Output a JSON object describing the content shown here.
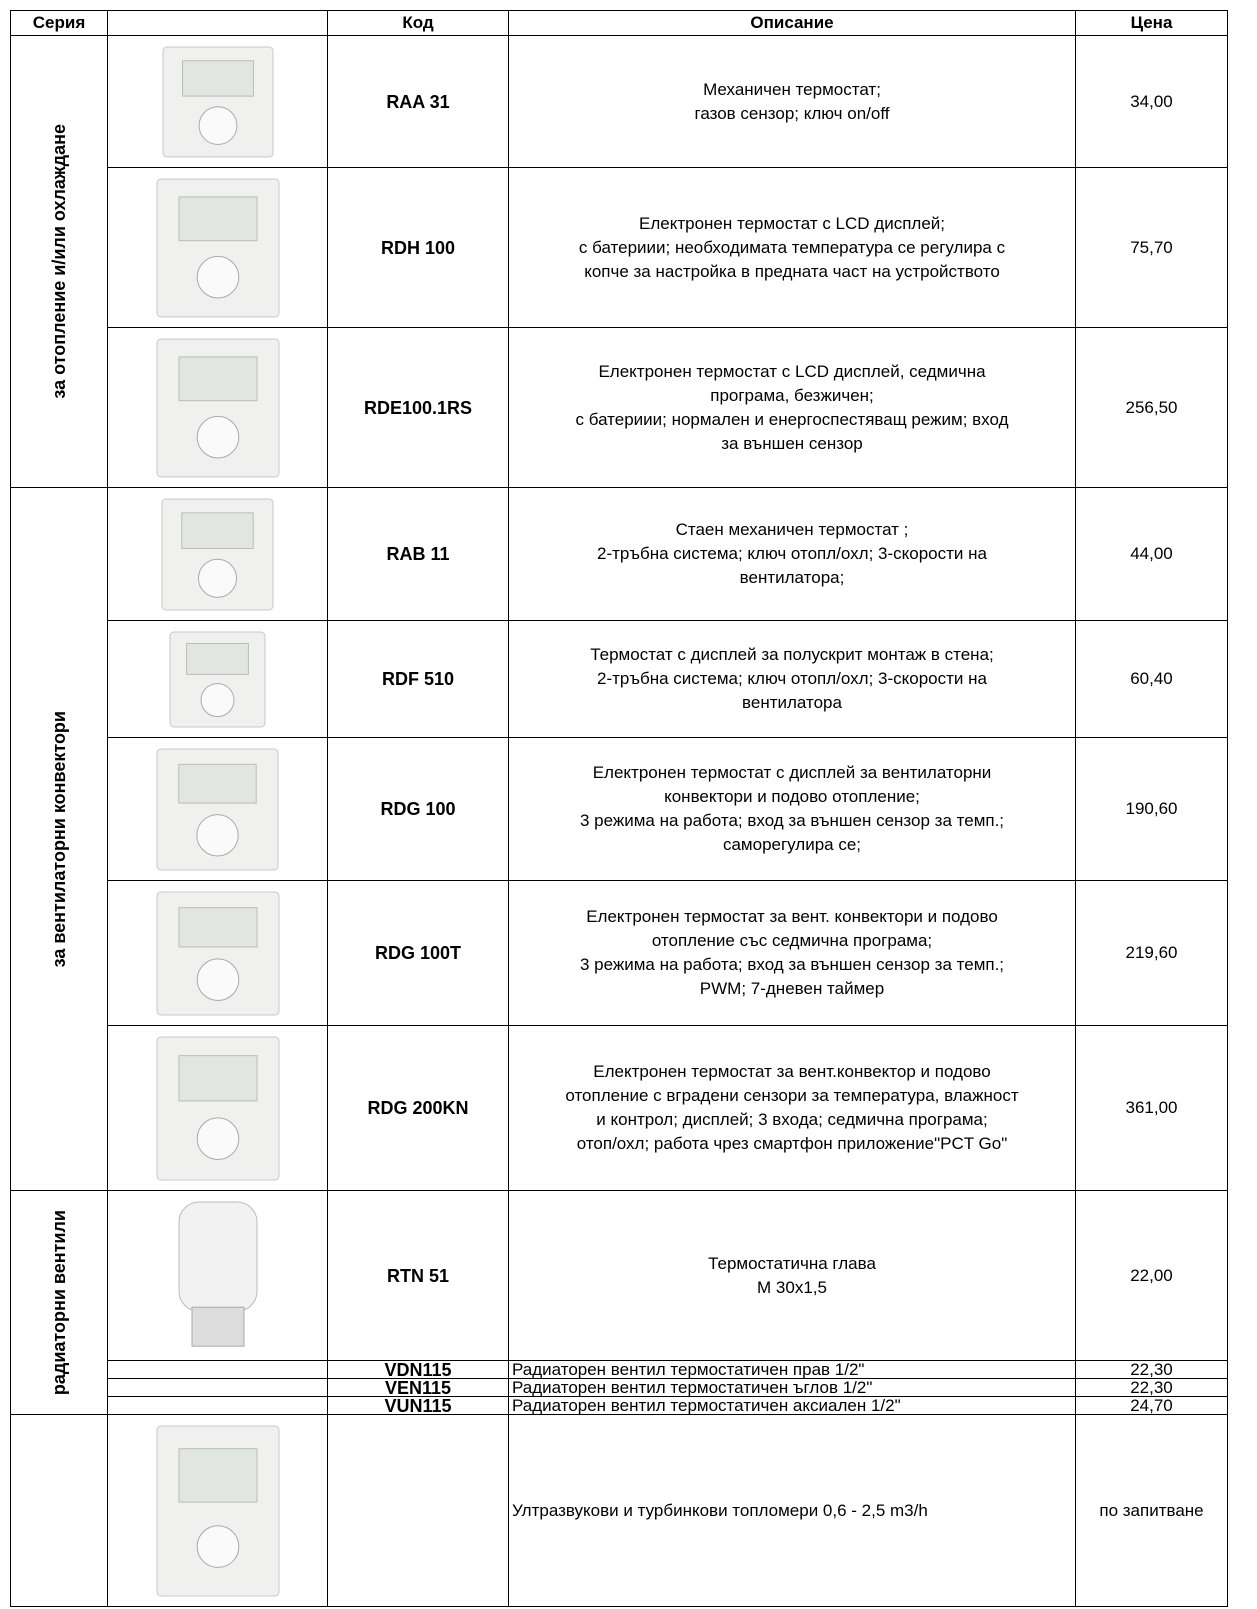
{
  "header": {
    "series": "Серия",
    "code": "Код",
    "description": "Описание",
    "price": "Цена"
  },
  "groups": [
    {
      "label": "за отопление и/или охлаждане",
      "rows": [
        {
          "code": "RAA 31",
          "description": [
            "Механичен термостат;",
            "газов сензор; ключ on/off"
          ],
          "price": "34,00"
        },
        {
          "code": "RDH 100",
          "description": [
            "Електронен термостат с LCD дисплей;",
            "с батериии; необходимата температура се регулира с",
            "копче за настройка в предната част на устройството"
          ],
          "price": "75,70"
        },
        {
          "code": "RDE100.1RS",
          "description": [
            "Електронен термостат с LCD дисплей, седмична",
            "програма, безжичен;",
            "с батериии; нормален и енергоспестяващ режим; вход",
            "за външен сензор"
          ],
          "price": "256,50"
        }
      ]
    },
    {
      "label": "за вентилаторни конвектори",
      "rows": [
        {
          "code": "RAB 11",
          "description": [
            "Стаен механичен термостат ;",
            "2-тръбна система; ключ отопл/охл; 3-скорости на",
            "вентилатора;"
          ],
          "price": "44,00"
        },
        {
          "code": "RDF 510",
          "description": [
            "Термостат с дисплей за полускрит монтаж в стена;",
            "2-тръбна система; ключ отопл/охл; 3-скорости на",
            "вентилатора"
          ],
          "price": "60,40"
        },
        {
          "code": "RDG 100",
          "description": [
            "Електронен термостат с дисплей за вентилаторни",
            "конвектори и подово отопление;",
            "3 режима на работа; вход за външен сензор за темп.;",
            "саморегулира се;"
          ],
          "price": "190,60"
        },
        {
          "code": "RDG 100T",
          "description": [
            "Електронен термостат за вент. конвектори и подово",
            "отопление със седмична програма;",
            "3 режима на работа; вход за външен сензор за темп.;",
            "PWM; 7-дневен таймер"
          ],
          "price": "219,60"
        },
        {
          "code": "RDG 200KN",
          "description": [
            "Електронен термостат за вент.конвектор и подово",
            "отопление с вградени сензори за температура, влажност",
            "и контрол;  дисплей; 3 входа; седмична програма;",
            "отоп/охл; работа чрез смартфон приложение\"PCT Go\""
          ],
          "price": "361,00"
        }
      ]
    },
    {
      "label": "радиаторни  вентили",
      "rows": [
        {
          "code": "RTN 51",
          "description": [
            "Термостатична глава",
            "M 30x1,5"
          ],
          "price": "22,00"
        },
        {
          "code": "VDN115",
          "description": [
            "Радиаторен вентил термостатичен прав 1/2\""
          ],
          "price": "22,30"
        },
        {
          "code": "VEN115",
          "description": [
            "Радиаторен вентил термостатичен ъглов 1/2\""
          ],
          "price": "22,30"
        },
        {
          "code": "VUN115",
          "description": [
            "Радиаторен вентил термостатичен аксиален 1/2\""
          ],
          "price": "24,70"
        }
      ]
    },
    {
      "rows": [
        {
          "description": [
            "Ултразвукови и турбинкови топломери 0,6 - 2,5 m3/h"
          ],
          "price": "по запитване"
        }
      ]
    }
  ]
}
